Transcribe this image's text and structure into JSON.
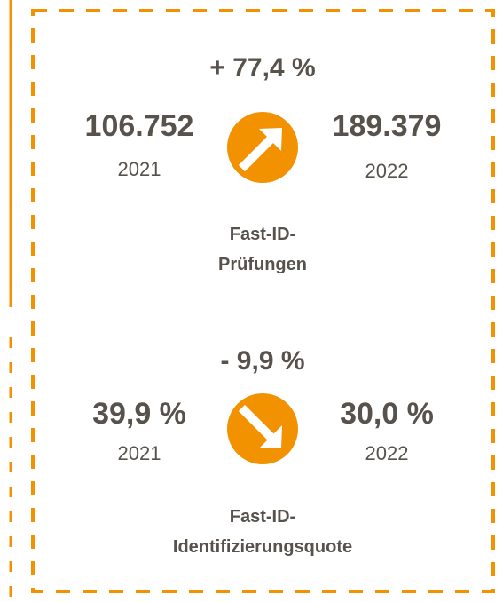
{
  "stats": [
    {
      "change": "+ 77,4 %",
      "left_value": "106.752",
      "left_year": "2021",
      "right_value": "189.379",
      "right_year": "2022",
      "label_lines": [
        "Fast-ID-",
        "Prüfungen"
      ]
    },
    {
      "change": "- 9,9 %",
      "left_value": "39,9 %",
      "left_year": "2021",
      "right_value": "30,0 %",
      "right_year": "2022",
      "label_lines": [
        "Fast-ID-",
        "Identifizierungsquote"
      ]
    }
  ]
}
